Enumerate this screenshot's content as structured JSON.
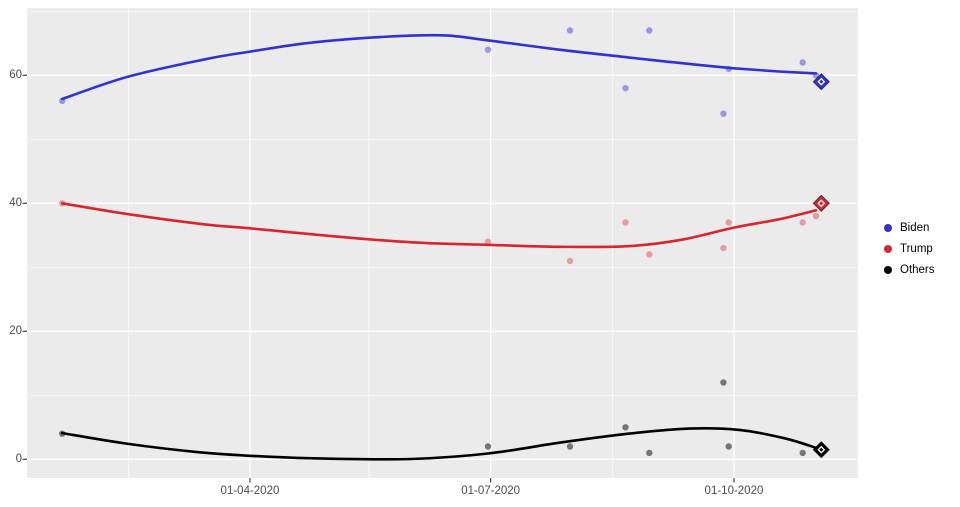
{
  "styles": {
    "background": "#ffffff",
    "panel_bg": "#ebebeb",
    "grid_color": "#ffffff",
    "axis_text_color": "#4d4d4d",
    "tick_mark_color": "#333333"
  },
  "chart_data": {
    "type": "scatter",
    "title": "",
    "xlabel": "",
    "ylabel": "",
    "grid": "on",
    "legend_position": "right",
    "x_axis": {
      "tick_labels": [
        "01-04-2020",
        "01-07-2020",
        "01-10-2020"
      ],
      "tick_dates": [
        "2020-04-01",
        "2020-07-01",
        "2020-10-01"
      ],
      "minor_tick_dates": [
        "2020-02-15",
        "2020-05-16",
        "2020-08-16"
      ],
      "date_range_visible": [
        "2020-01-07",
        "2020-11-16"
      ]
    },
    "y_axis": {
      "tick_labels": [
        "0",
        "20",
        "40",
        "60"
      ],
      "tick_values": [
        0,
        20,
        40,
        60
      ],
      "minor_tick_values": [
        10,
        30,
        50,
        70
      ],
      "range": [
        -3,
        70.5
      ]
    },
    "series": [
      {
        "name": "Biden",
        "color": "#3232d2",
        "point_opacity": 0.45,
        "points": [
          [
            "2020-01-21",
            56
          ],
          [
            "2020-06-30",
            64
          ],
          [
            "2020-07-31",
            67
          ],
          [
            "2020-08-21",
            58
          ],
          [
            "2020-08-30",
            67
          ],
          [
            "2020-09-27",
            54
          ],
          [
            "2020-09-29",
            61
          ],
          [
            "2020-10-27",
            62
          ],
          [
            "2020-11-01",
            60
          ]
        ],
        "smooth": [
          [
            "2020-01-21",
            56.3
          ],
          [
            "2020-02-15",
            59.8
          ],
          [
            "2020-03-15",
            62.5
          ],
          [
            "2020-04-01",
            63.7
          ],
          [
            "2020-04-20",
            64.9
          ],
          [
            "2020-05-10",
            65.7
          ],
          [
            "2020-06-01",
            66.2
          ],
          [
            "2020-06-15",
            66.2
          ],
          [
            "2020-07-01",
            65.4
          ],
          [
            "2020-07-27",
            64.0
          ],
          [
            "2020-08-22",
            62.8
          ],
          [
            "2020-09-11",
            61.9
          ],
          [
            "2020-10-01",
            61.1
          ],
          [
            "2020-10-18",
            60.6
          ],
          [
            "2020-11-01",
            60.3
          ]
        ],
        "final_marker": {
          "date": "2020-11-03",
          "value": 59,
          "shape": "diamond"
        }
      },
      {
        "name": "Trump",
        "color": "#d8262e",
        "point_opacity": 0.4,
        "points": [
          [
            "2020-01-21",
            40
          ],
          [
            "2020-06-30",
            34
          ],
          [
            "2020-07-31",
            31
          ],
          [
            "2020-08-21",
            37
          ],
          [
            "2020-08-30",
            32
          ],
          [
            "2020-09-27",
            33
          ],
          [
            "2020-09-29",
            37
          ],
          [
            "2020-10-27",
            37
          ],
          [
            "2020-11-01",
            38
          ]
        ],
        "smooth": [
          [
            "2020-01-21",
            40.0
          ],
          [
            "2020-02-15",
            38.3
          ],
          [
            "2020-03-15",
            36.7
          ],
          [
            "2020-04-01",
            36.1
          ],
          [
            "2020-05-01",
            34.9
          ],
          [
            "2020-06-01",
            33.9
          ],
          [
            "2020-07-01",
            33.5
          ],
          [
            "2020-07-27",
            33.2
          ],
          [
            "2020-08-22",
            33.3
          ],
          [
            "2020-09-11",
            34.3
          ],
          [
            "2020-10-01",
            36.2
          ],
          [
            "2020-10-18",
            37.5
          ],
          [
            "2020-11-01",
            38.9
          ]
        ],
        "final_marker": {
          "date": "2020-11-03",
          "value": 40,
          "shape": "diamond"
        }
      },
      {
        "name": "Others",
        "color": "#000000",
        "point_opacity": 0.5,
        "points": [
          [
            "2020-01-21",
            4
          ],
          [
            "2020-06-30",
            2
          ],
          [
            "2020-07-31",
            2
          ],
          [
            "2020-08-21",
            5
          ],
          [
            "2020-08-30",
            1
          ],
          [
            "2020-09-27",
            12
          ],
          [
            "2020-09-29",
            2
          ],
          [
            "2020-10-27",
            1
          ]
        ],
        "smooth": [
          [
            "2020-01-21",
            4.1
          ],
          [
            "2020-02-15",
            2.4
          ],
          [
            "2020-03-13",
            1.1
          ],
          [
            "2020-04-08",
            0.4
          ],
          [
            "2020-05-01",
            0.1
          ],
          [
            "2020-06-01",
            0.05
          ],
          [
            "2020-06-30",
            0.9
          ],
          [
            "2020-07-27",
            2.6
          ],
          [
            "2020-08-22",
            4.0
          ],
          [
            "2020-09-14",
            4.8
          ],
          [
            "2020-10-03",
            4.6
          ],
          [
            "2020-10-20",
            3.3
          ],
          [
            "2020-11-01",
            1.8
          ]
        ],
        "final_marker": {
          "date": "2020-11-03",
          "value": 1.5,
          "shape": "diamond"
        }
      }
    ]
  }
}
